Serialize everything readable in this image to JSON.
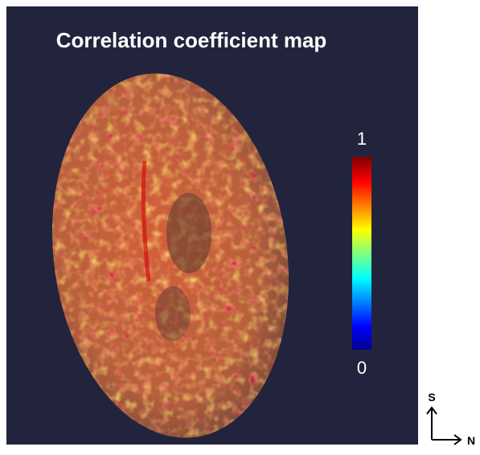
{
  "title": "Correlation coefficient map",
  "colorbar": {
    "top_label": "1",
    "bottom_label": "0"
  },
  "orientation": {
    "up": "S",
    "right": "N"
  }
}
